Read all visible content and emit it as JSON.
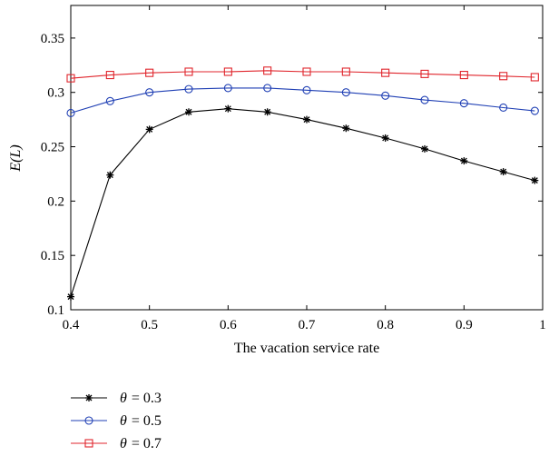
{
  "chart_data": {
    "type": "line",
    "xlabel": "The vacation service rate",
    "ylabel": "E(L)",
    "xlim": [
      0.4,
      1.0
    ],
    "ylim": [
      0.1,
      0.38
    ],
    "xticks": [
      0.4,
      0.5,
      0.6,
      0.7,
      0.8,
      0.9,
      1
    ],
    "yticks": [
      0.1,
      0.15,
      0.2,
      0.25,
      0.3,
      0.35
    ],
    "xtick_labels": [
      "0.4",
      "0.5",
      "0.6",
      "0.7",
      "0.8",
      "0.9",
      "1"
    ],
    "ytick_labels": [
      "0.1",
      "0.15",
      "0.2",
      "0.25",
      "0.3",
      "0.35"
    ],
    "x": [
      0.4,
      0.45,
      0.5,
      0.55,
      0.6,
      0.65,
      0.7,
      0.75,
      0.8,
      0.85,
      0.9,
      0.95,
      0.99
    ],
    "grid": false,
    "legend_position": "below",
    "series": [
      {
        "legend_symbol": "θ",
        "legend_value": "= 0.3",
        "color": "#000000",
        "marker": "star",
        "values": [
          0.112,
          0.224,
          0.266,
          0.282,
          0.285,
          0.282,
          0.275,
          0.267,
          0.258,
          0.248,
          0.237,
          0.227,
          0.219
        ]
      },
      {
        "legend_symbol": "θ",
        "legend_value": "= 0.5",
        "color": "#1f3fb4",
        "marker": "circle",
        "values": [
          0.281,
          0.292,
          0.3,
          0.303,
          0.304,
          0.304,
          0.302,
          0.3,
          0.297,
          0.293,
          0.29,
          0.286,
          0.283
        ]
      },
      {
        "legend_symbol": "θ",
        "legend_value": "= 0.7",
        "color": "#e0252c",
        "marker": "square",
        "values": [
          0.313,
          0.316,
          0.318,
          0.319,
          0.319,
          0.32,
          0.319,
          0.319,
          0.318,
          0.317,
          0.316,
          0.315,
          0.314
        ]
      }
    ]
  }
}
